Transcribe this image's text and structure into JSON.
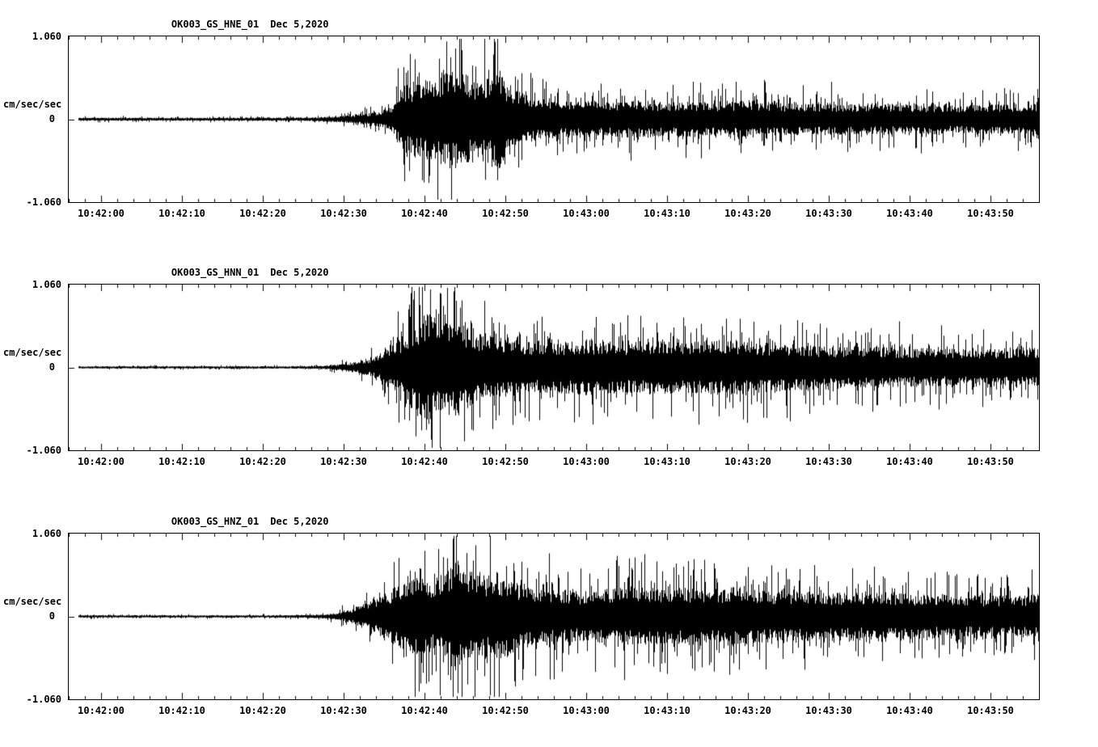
{
  "chart_data": [
    {
      "type": "line",
      "title": "OK003_GS_HNE_01",
      "date": "Dec 5,2020",
      "ylabel": "cm/sec/sec",
      "ylim": [
        -1.06,
        1.06
      ],
      "yticks": {
        "max": "1.060",
        "zero": "0",
        "min": "-1.060"
      },
      "x_start_sec": -4,
      "x_end_sec": 116,
      "xtick_seconds": [
        0,
        10,
        20,
        30,
        40,
        50,
        60,
        70,
        80,
        90,
        100,
        110
      ],
      "xtick_labels": [
        "10:42:00",
        "10:42:10",
        "10:42:20",
        "10:42:30",
        "10:42:40",
        "10:42:50",
        "10:43:00",
        "10:43:10",
        "10:43:20",
        "10:43:30",
        "10:43:40",
        "10:43:50"
      ],
      "seed": 11,
      "envelope": [
        [
          -4,
          0.022
        ],
        [
          20,
          0.022
        ],
        [
          26,
          0.025
        ],
        [
          29,
          0.04
        ],
        [
          32,
          0.07
        ],
        [
          34,
          0.1
        ],
        [
          36,
          0.18
        ],
        [
          37,
          0.45
        ],
        [
          39,
          0.55
        ],
        [
          41,
          0.6
        ],
        [
          43,
          0.7
        ],
        [
          45,
          0.65
        ],
        [
          47,
          0.55
        ],
        [
          48,
          0.6
        ],
        [
          49,
          0.78
        ],
        [
          50,
          0.5
        ],
        [
          52,
          0.38
        ],
        [
          54,
          0.3
        ],
        [
          57,
          0.26
        ],
        [
          60,
          0.27
        ],
        [
          63,
          0.24
        ],
        [
          66,
          0.28
        ],
        [
          70,
          0.24
        ],
        [
          73,
          0.26
        ],
        [
          76,
          0.23
        ],
        [
          80,
          0.28
        ],
        [
          83,
          0.24
        ],
        [
          86,
          0.22
        ],
        [
          90,
          0.23
        ],
        [
          95,
          0.21
        ],
        [
          100,
          0.22
        ],
        [
          105,
          0.2
        ],
        [
          110,
          0.21
        ],
        [
          116,
          0.23
        ]
      ]
    },
    {
      "type": "line",
      "title": "OK003_GS_HNN_01",
      "date": "Dec 5,2020",
      "ylabel": "cm/sec/sec",
      "ylim": [
        -1.06,
        1.06
      ],
      "yticks": {
        "max": "1.060",
        "zero": "0",
        "min": "-1.060"
      },
      "x_start_sec": -4,
      "x_end_sec": 116,
      "xtick_seconds": [
        0,
        10,
        20,
        30,
        40,
        50,
        60,
        70,
        80,
        90,
        100,
        110
      ],
      "xtick_labels": [
        "10:42:00",
        "10:42:10",
        "10:42:20",
        "10:42:30",
        "10:42:40",
        "10:42:50",
        "10:43:00",
        "10:43:10",
        "10:43:20",
        "10:43:30",
        "10:43:40",
        "10:43:50"
      ],
      "seed": 22,
      "envelope": [
        [
          -4,
          0.016
        ],
        [
          22,
          0.016
        ],
        [
          27,
          0.02
        ],
        [
          30,
          0.05
        ],
        [
          32,
          0.09
        ],
        [
          34,
          0.16
        ],
        [
          36,
          0.3
        ],
        [
          38,
          0.55
        ],
        [
          40,
          0.78
        ],
        [
          42,
          0.62
        ],
        [
          44,
          0.7
        ],
        [
          46,
          0.5
        ],
        [
          48,
          0.45
        ],
        [
          50,
          0.42
        ],
        [
          53,
          0.38
        ],
        [
          56,
          0.36
        ],
        [
          60,
          0.4
        ],
        [
          64,
          0.36
        ],
        [
          68,
          0.38
        ],
        [
          72,
          0.36
        ],
        [
          76,
          0.4
        ],
        [
          80,
          0.38
        ],
        [
          84,
          0.34
        ],
        [
          88,
          0.32
        ],
        [
          92,
          0.3
        ],
        [
          96,
          0.3
        ],
        [
          100,
          0.28
        ],
        [
          105,
          0.27
        ],
        [
          110,
          0.26
        ],
        [
          116,
          0.26
        ]
      ]
    },
    {
      "type": "line",
      "title": "OK003_GS_HNZ_01",
      "date": "Dec 5,2020",
      "ylabel": "cm/sec/sec",
      "ylim": [
        -1.06,
        1.06
      ],
      "yticks": {
        "max": "1.060",
        "zero": "0",
        "min": "-1.060"
      },
      "x_start_sec": -4,
      "x_end_sec": 116,
      "xtick_seconds": [
        0,
        10,
        20,
        30,
        40,
        50,
        60,
        70,
        80,
        90,
        100,
        110
      ],
      "xtick_labels": [
        "10:42:00",
        "10:42:10",
        "10:42:20",
        "10:42:30",
        "10:42:40",
        "10:42:50",
        "10:43:00",
        "10:43:10",
        "10:43:20",
        "10:43:30",
        "10:43:40",
        "10:43:50"
      ],
      "seed": 33,
      "envelope": [
        [
          -4,
          0.016
        ],
        [
          22,
          0.016
        ],
        [
          27,
          0.025
        ],
        [
          29,
          0.05
        ],
        [
          31,
          0.1
        ],
        [
          33,
          0.2
        ],
        [
          35,
          0.32
        ],
        [
          37,
          0.45
        ],
        [
          39,
          0.58
        ],
        [
          41,
          0.52
        ],
        [
          43,
          0.68
        ],
        [
          44,
          0.8
        ],
        [
          45,
          0.62
        ],
        [
          47,
          0.6
        ],
        [
          49,
          0.64
        ],
        [
          51,
          0.5
        ],
        [
          53,
          0.44
        ],
        [
          56,
          0.4
        ],
        [
          59,
          0.36
        ],
        [
          62,
          0.4
        ],
        [
          66,
          0.42
        ],
        [
          70,
          0.4
        ],
        [
          74,
          0.42
        ],
        [
          78,
          0.4
        ],
        [
          82,
          0.38
        ],
        [
          86,
          0.36
        ],
        [
          90,
          0.35
        ],
        [
          94,
          0.34
        ],
        [
          98,
          0.33
        ],
        [
          102,
          0.32
        ],
        [
          106,
          0.31
        ],
        [
          110,
          0.3
        ],
        [
          116,
          0.32
        ]
      ]
    }
  ]
}
